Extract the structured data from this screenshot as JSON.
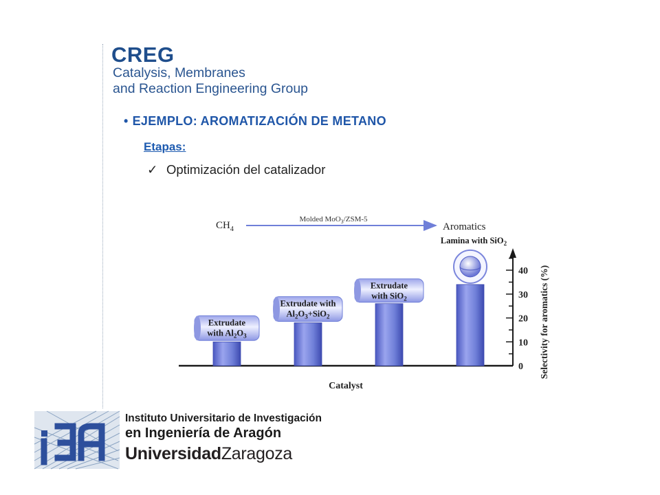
{
  "header": {
    "creg_title": "CREG",
    "creg_line1": "Catalysis, Membranes",
    "creg_line2": "and Reaction Engineering Group"
  },
  "content": {
    "bullet": "•",
    "heading": "EJEMPLO: AROMATIZACIÓN DE METANO",
    "subheading": "Etapas:",
    "checkmark": "✓",
    "item": "Optimización del catalizador"
  },
  "chart_data": {
    "type": "bar",
    "reaction": {
      "reactant": "CH4",
      "catalyst": "Molded MoO3/ZSM-5",
      "product": "Aromatics"
    },
    "categories": [
      "Extrudate with Al2O3",
      "Extrudate with Al2O3+SiO2",
      "Extrudate with SiO2",
      "Lamina with SiO2"
    ],
    "values": [
      10,
      18,
      26,
      34
    ],
    "xlabel": "Catalyst",
    "ylabel": "Selectivity for aromatics (%)",
    "yticks": [
      0,
      10,
      20,
      30,
      40
    ],
    "ylim": [
      0,
      40
    ],
    "bar_color": "#6f7fd8",
    "axis_color": "#1a1a1a"
  },
  "footer": {
    "inst_line1": "Instituto Universitario de Investigación",
    "inst_line2": "en Ingeniería de Aragón",
    "univ_bold": "Universidad",
    "univ_light": "Zaragoza"
  }
}
